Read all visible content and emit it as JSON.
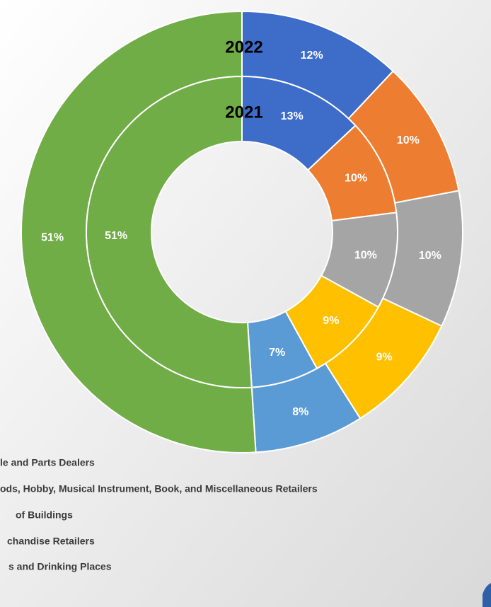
{
  "chart_data": {
    "type": "donut",
    "colors": [
      "#3d6cc9",
      "#ed7d31",
      "#a5a5a5",
      "#ffc000",
      "#5b9bd5",
      "#70ad47"
    ],
    "series": [
      {
        "name": "2022",
        "values": [
          12,
          10,
          10,
          9,
          8,
          51
        ],
        "value_labels": [
          "12%",
          "10%",
          "10%",
          "9%",
          "8%",
          "51%"
        ]
      },
      {
        "name": "2021",
        "values": [
          13,
          10,
          10,
          9,
          7,
          51
        ],
        "value_labels": [
          "13%",
          "10%",
          "10%",
          "9%",
          "7%",
          "51%"
        ]
      }
    ],
    "legend_entries": [
      "le and Parts Dealers",
      "ods, Hobby, Musical Instrument, Book, and Miscellaneous Retailers",
      "of Buildings",
      "chandise Retailers",
      "s and Drinking Places"
    ]
  }
}
